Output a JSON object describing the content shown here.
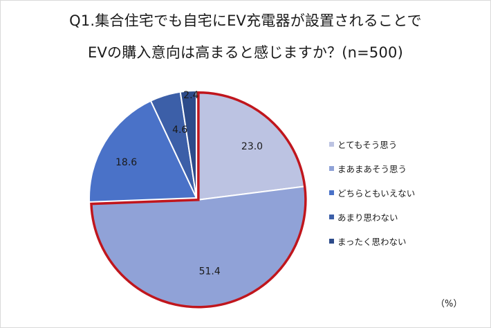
{
  "chart_data": {
    "type": "pie",
    "title_lines": [
      "Q1.集合住宅でも自宅にEV充電器が設置されることで",
      "EVの購入意向は高まると感じますか？(n=500)"
    ],
    "unit_label": "（%）",
    "categories": [
      "とてもそう思う",
      "まあまあそう思う",
      "どちらともいえない",
      "あまり思わない",
      "まったく思わない"
    ],
    "values": [
      23.0,
      51.4,
      18.6,
      4.6,
      2.4
    ],
    "value_labels": [
      "23.0",
      "51.4",
      "18.6",
      "4.6",
      "2.4"
    ],
    "colors": [
      "#bcc3e2",
      "#90a2d7",
      "#4a72c8",
      "#3c5fa8",
      "#2d4b8a"
    ],
    "highlight_color": "#c0161d",
    "highlighted_categories": [
      0,
      1
    ],
    "legend_position": "right"
  }
}
